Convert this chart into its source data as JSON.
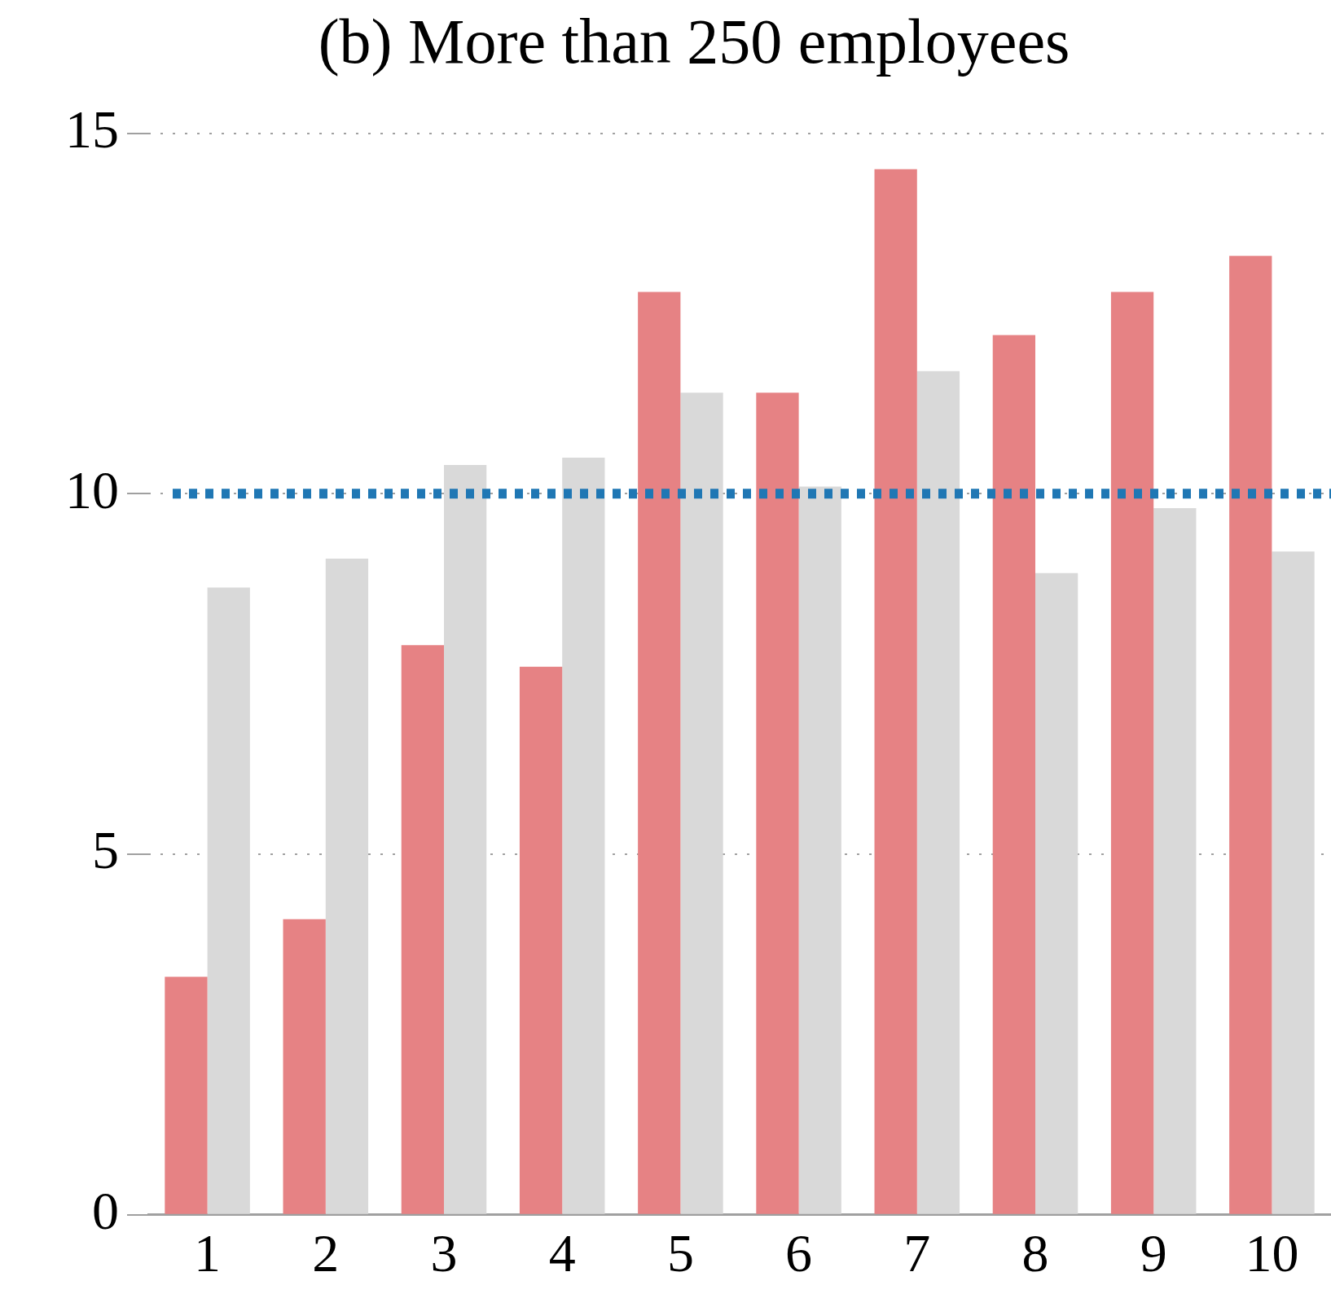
{
  "chart_data": {
    "type": "bar",
    "title": "(b) More than 250 employees",
    "categories": [
      "1",
      "2",
      "3",
      "4",
      "5",
      "6",
      "7",
      "8",
      "9",
      "10"
    ],
    "series": [
      {
        "color": "#e68284",
        "values": [
          3.3,
          4.1,
          7.9,
          7.6,
          12.8,
          11.4,
          14.5,
          12.2,
          12.8,
          13.3
        ]
      },
      {
        "color": "#d9d9d9",
        "values": [
          8.7,
          9.1,
          10.4,
          10.5,
          11.4,
          10.1,
          11.7,
          8.9,
          9.8,
          9.2
        ]
      }
    ],
    "ylim": [
      0,
      15
    ],
    "yticks": [
      0,
      5,
      10,
      15
    ],
    "grid": "y",
    "legend": false,
    "ref_lines": [
      {
        "axis": "y",
        "value": 10,
        "color": "#1f77b4",
        "line_style": "dotted"
      }
    ]
  }
}
